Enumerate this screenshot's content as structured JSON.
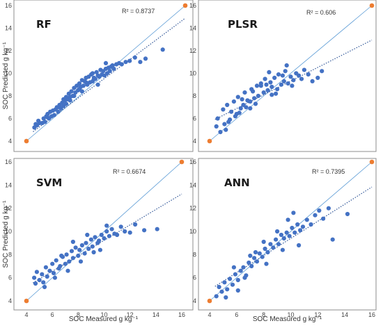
{
  "chart_data": [
    {
      "type": "scatter",
      "label": "RF",
      "r2_text": "R² = 0.8737",
      "slope": 0.8737,
      "intercept": 0.9,
      "xlim": [
        4,
        16
      ],
      "ylim": [
        4,
        16
      ],
      "xticks": [
        "4",
        "6",
        "8",
        "10",
        "12",
        "14",
        "16"
      ],
      "yticks": [
        "4",
        "6",
        "8",
        "10",
        "12",
        "14",
        "16"
      ],
      "ylabel": "SOC  Predicted g kg⁻¹",
      "xlabel": "",
      "x": [
        4.6,
        4.7,
        4.8,
        4.9,
        5.0,
        5.2,
        5.3,
        5.4,
        5.5,
        5.6,
        5.7,
        5.8,
        5.9,
        6.0,
        6.1,
        6.2,
        6.3,
        6.4,
        6.5,
        6.6,
        6.7,
        6.8,
        6.9,
        7.0,
        7.0,
        7.1,
        7.2,
        7.3,
        7.4,
        7.5,
        7.6,
        7.7,
        7.8,
        7.9,
        8.0,
        8.0,
        8.1,
        8.2,
        8.3,
        8.4,
        8.5,
        8.6,
        8.7,
        8.8,
        8.9,
        9.0,
        9.0,
        9.1,
        9.2,
        9.3,
        9.4,
        9.5,
        9.6,
        9.7,
        9.8,
        9.9,
        10.0,
        10.1,
        10.2,
        10.3,
        10.4,
        10.5,
        10.6,
        10.8,
        11.0,
        11.2,
        11.5,
        11.8,
        12.2,
        12.6,
        13.0,
        14.3,
        5.6,
        6.4,
        7.3,
        8.2,
        9.1,
        10.0,
        6.8,
        7.6,
        8.5,
        9.4
      ],
      "y": [
        5.2,
        5.5,
        5.4,
        5.8,
        5.6,
        5.6,
        6.0,
        5.7,
        6.2,
        6.4,
        6.0,
        6.6,
        6.2,
        6.7,
        6.3,
        6.8,
        7.0,
        6.6,
        7.2,
        6.9,
        7.4,
        7.1,
        7.6,
        7.3,
        7.9,
        7.7,
        8.2,
        7.6,
        8.4,
        8.0,
        8.7,
        8.3,
        8.9,
        8.5,
        8.6,
        9.1,
        8.8,
        9.4,
        8.9,
        9.3,
        9.6,
        9.0,
        9.7,
        9.2,
        9.9,
        9.3,
        10.0,
        9.6,
        9.5,
        10.1,
        9.8,
        9.7,
        10.3,
        9.9,
        10.2,
        9.8,
        10.4,
        10.0,
        10.5,
        10.2,
        10.6,
        10.7,
        10.4,
        10.8,
        10.9,
        10.8,
        11.0,
        11.1,
        11.4,
        11.0,
        11.3,
        12.1,
        6.1,
        7.0,
        7.9,
        8.4,
        9.5,
        10.9,
        7.7,
        8.0,
        9.2,
        9.0
      ]
    },
    {
      "type": "scatter",
      "label": "PLSR",
      "r2_text": "R² = 0.606",
      "slope": 0.606,
      "intercept": 3.25,
      "xlim": [
        4,
        16
      ],
      "ylim": [
        4,
        16
      ],
      "xticks": [
        "4",
        "6",
        "8",
        "10",
        "12",
        "14",
        "16"
      ],
      "yticks": [
        "4",
        "6",
        "8",
        "10",
        "12",
        "14",
        "16"
      ],
      "ylabel": "",
      "xlabel": "",
      "x": [
        4.5,
        4.6,
        4.8,
        5.0,
        5.1,
        5.3,
        5.5,
        5.6,
        5.8,
        6.0,
        6.1,
        6.3,
        6.5,
        6.6,
        6.8,
        7.0,
        7.1,
        7.3,
        7.5,
        7.6,
        7.8,
        8.0,
        8.1,
        8.3,
        8.5,
        8.6,
        8.8,
        9.0,
        9.1,
        9.3,
        9.5,
        9.6,
        9.8,
        10.0,
        10.2,
        10.4,
        10.6,
        10.8,
        11.0,
        11.3,
        11.6,
        12.0,
        12.3,
        5.2,
        5.9,
        6.7,
        7.4,
        8.2,
        8.9,
        9.7,
        6.2,
        7.0,
        7.8,
        8.6,
        9.4,
        10.1,
        5.4,
        6.4,
        7.2,
        8.4
      ],
      "y": [
        5.3,
        6.0,
        4.8,
        6.8,
        5.5,
        7.2,
        5.9,
        6.6,
        7.5,
        6.4,
        7.9,
        6.9,
        7.2,
        8.3,
        7.6,
        6.9,
        8.6,
        7.8,
        8.9,
        8.0,
        9.1,
        8.3,
        9.5,
        8.5,
        9.2,
        8.8,
        9.6,
        8.6,
        9.9,
        9.0,
        9.3,
        10.2,
        9.1,
        9.7,
        9.4,
        10.0,
        9.8,
        9.5,
        10.3,
        9.9,
        9.3,
        9.6,
        10.2,
        5.0,
        6.2,
        7.0,
        7.3,
        9.0,
        8.2,
        10.7,
        6.5,
        7.5,
        8.9,
        8.1,
        9.8,
        8.9,
        5.7,
        7.7,
        8.4,
        10.1
      ]
    },
    {
      "type": "scatter",
      "label": "SVM",
      "r2_text": "R² = 0.6674",
      "slope": 0.6674,
      "intercept": 2.55,
      "xlim": [
        4,
        16
      ],
      "ylim": [
        4,
        16
      ],
      "xticks": [
        "4",
        "6",
        "8",
        "10",
        "12",
        "14",
        "16"
      ],
      "yticks": [
        "4",
        "6",
        "8",
        "10",
        "12",
        "14",
        "16"
      ],
      "ylabel": "SOC Predicted g kg⁻¹",
      "xlabel": "",
      "x": [
        4.6,
        4.7,
        4.8,
        5.0,
        5.2,
        5.3,
        5.5,
        5.6,
        5.8,
        6.0,
        6.1,
        6.3,
        6.5,
        6.6,
        6.8,
        7.0,
        7.1,
        7.3,
        7.5,
        7.6,
        7.8,
        8.0,
        8.1,
        8.3,
        8.5,
        8.6,
        8.8,
        9.0,
        9.1,
        9.3,
        9.5,
        9.6,
        9.8,
        10.0,
        10.2,
        10.4,
        10.6,
        10.8,
        11.0,
        11.3,
        11.6,
        12.0,
        12.4,
        13.1,
        14.1,
        5.4,
        6.2,
        7.2,
        8.2,
        9.2,
        10.2,
        6.7,
        7.6,
        8.7,
        9.7
      ],
      "y": [
        6.0,
        5.5,
        6.5,
        5.8,
        6.3,
        5.6,
        6.9,
        6.1,
        6.6,
        7.2,
        6.4,
        7.5,
        6.8,
        7.0,
        7.8,
        7.2,
        8.0,
        7.4,
        8.3,
        7.7,
        8.6,
        7.9,
        8.4,
        8.8,
        8.1,
        9.0,
        8.5,
        9.3,
        8.7,
        9.5,
        9.0,
        9.2,
        9.7,
        9.4,
        10.0,
        9.6,
        10.2,
        9.8,
        9.7,
        10.4,
        10.0,
        9.9,
        10.6,
        10.1,
        10.2,
        5.2,
        6.0,
        6.6,
        7.4,
        8.2,
        10.5,
        7.9,
        9.1,
        9.7,
        8.4
      ]
    },
    {
      "type": "scatter",
      "label": "ANN",
      "r2_text": "R² = 0.7395",
      "slope": 0.7395,
      "intercept": 2.0,
      "xlim": [
        4,
        16
      ],
      "ylim": [
        4,
        16
      ],
      "xticks": [
        "4",
        "6",
        "8",
        "10",
        "12",
        "14",
        "16"
      ],
      "yticks": [
        "4",
        "6",
        "8",
        "10",
        "12",
        "14",
        "16"
      ],
      "ylabel": "",
      "xlabel": "",
      "x": [
        4.5,
        4.7,
        4.9,
        5.1,
        5.3,
        5.5,
        5.7,
        5.9,
        6.1,
        6.3,
        6.5,
        6.7,
        6.9,
        7.1,
        7.3,
        7.5,
        7.7,
        7.9,
        8.1,
        8.3,
        8.5,
        8.7,
        8.9,
        9.1,
        9.3,
        9.5,
        9.7,
        9.9,
        10.1,
        10.3,
        10.5,
        10.7,
        10.9,
        11.2,
        11.5,
        11.8,
        12.1,
        12.4,
        12.8,
        13.1,
        14.2,
        5.2,
        5.8,
        6.6,
        7.4,
        8.2,
        9.0,
        9.8,
        10.6,
        6.1,
        7.0,
        8.0,
        9.4,
        10.2
      ],
      "y": [
        4.4,
        5.2,
        4.8,
        5.6,
        5.0,
        5.9,
        5.4,
        6.3,
        5.8,
        6.6,
        6.9,
        6.2,
        7.3,
        7.0,
        7.7,
        7.4,
        8.1,
        7.8,
        8.5,
        8.2,
        8.9,
        8.6,
        9.3,
        8.9,
        9.7,
        9.4,
        9.9,
        9.6,
        10.3,
        9.9,
        10.6,
        10.1,
        10.4,
        11.0,
        10.6,
        11.4,
        11.8,
        11.1,
        12.0,
        9.3,
        11.5,
        4.3,
        6.9,
        6.0,
        8.2,
        7.2,
        10.0,
        11.0,
        8.8,
        4.9,
        7.9,
        9.1,
        8.4,
        11.6
      ]
    }
  ],
  "x_axis_title": "SOC Measured g kg⁻¹",
  "colors": {
    "points": "#4472c4",
    "one_to_one": "#5b9bd5",
    "trend": "#2f5597",
    "corner": "#ed7d31",
    "frame": "#8c8c8c"
  }
}
